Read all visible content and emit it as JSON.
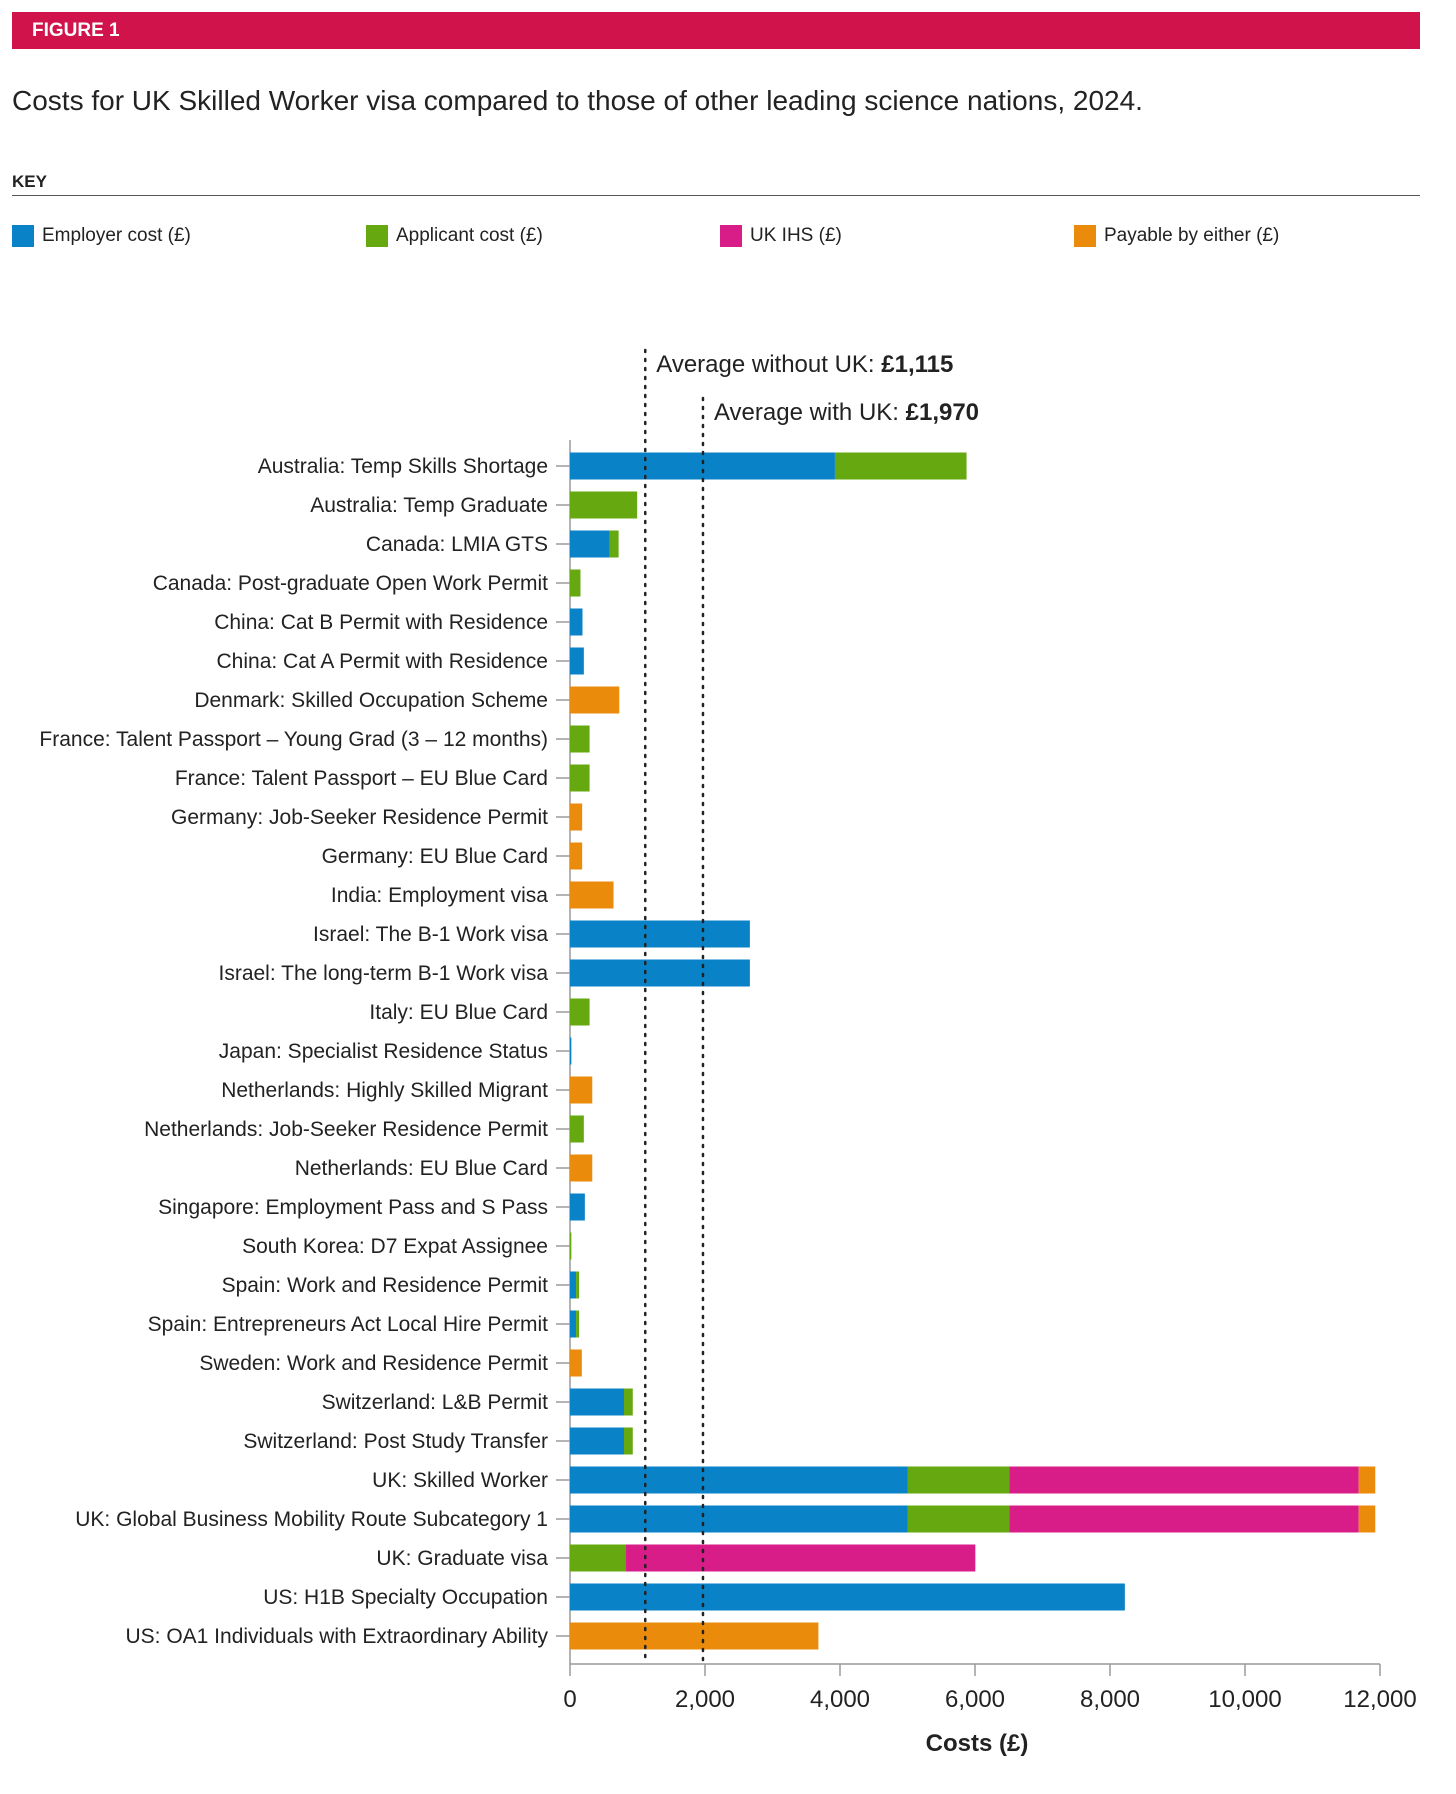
{
  "figure": {
    "label": "FIGURE 1",
    "title": "Costs for UK Skilled Worker visa compared to those of other leading science nations, 2024.",
    "key_heading": "KEY"
  },
  "legend": [
    {
      "name": "Employer cost (£)",
      "color": "#0a82c8"
    },
    {
      "name": "Applicant cost (£)",
      "color": "#65a80f"
    },
    {
      "name": "UK IHS (£)",
      "color": "#d81c88"
    },
    {
      "name": "Payable by either (£)",
      "color": "#ea8b0c"
    }
  ],
  "chart_data": {
    "type": "bar",
    "orientation": "horizontal",
    "stacked": true,
    "xlabel": "Costs (£)",
    "ylabel": "",
    "xlim": [
      0,
      12000
    ],
    "x_ticks": [
      0,
      2000,
      4000,
      6000,
      8000,
      10000,
      12000
    ],
    "x_tick_labels": [
      "0",
      "2,000",
      "4,000",
      "6,000",
      "8,000",
      "10,000",
      "12,000"
    ],
    "categories": [
      "Australia: Temp Skills Shortage",
      "Australia: Temp Graduate",
      "Canada: LMIA GTS",
      "Canada: Post-graduate Open Work Permit",
      "China: Cat B Permit with Residence",
      "China: Cat A Permit with Residence",
      "Denmark: Skilled Occupation Scheme",
      "France: Talent Passport – Young Grad (3 – 12 months)",
      "France: Talent Passport – EU Blue Card",
      "Germany: Job-Seeker Residence Permit",
      "Germany: EU Blue Card",
      "India: Employment visa",
      "Israel: The B-1 Work visa",
      "Israel: The long-term B-1 Work visa",
      "Italy: EU Blue Card",
      "Japan: Specialist Residence Status",
      "Netherlands: Highly Skilled Migrant",
      "Netherlands: Job-Seeker Residence Permit",
      "Netherlands: EU Blue Card",
      "Singapore: Employment Pass and S Pass",
      "South Korea: D7 Expat Assignee",
      "Spain: Work and Residence Permit",
      "Spain: Entrepreneurs Act Local Hire Permit",
      "Sweden: Work and Residence Permit",
      "Switzerland: L&B Permit",
      "Switzerland: Post Study Transfer",
      "UK: Skilled Worker",
      "UK: Global Business Mobility Route Subcategory 1",
      "UK: Graduate visa",
      "US: H1B Specialty Occupation",
      "US: OA1 Individuals with Extraordinary Ability"
    ],
    "series": [
      {
        "name": "Employer cost (£)",
        "color": "#0a82c8",
        "values": [
          3925,
          0,
          590,
          0,
          185,
          205,
          0,
          0,
          0,
          0,
          0,
          0,
          2665,
          2665,
          0,
          20,
          0,
          0,
          0,
          220,
          0,
          90,
          90,
          0,
          800,
          800,
          5000,
          5000,
          0,
          8220,
          0
        ]
      },
      {
        "name": "Applicant cost (£)",
        "color": "#65a80f",
        "values": [
          1950,
          995,
          130,
          155,
          0,
          0,
          0,
          290,
          290,
          0,
          0,
          0,
          0,
          0,
          290,
          0,
          0,
          205,
          0,
          0,
          20,
          45,
          45,
          0,
          130,
          130,
          1510,
          1510,
          830,
          0,
          0
        ]
      },
      {
        "name": "UK IHS (£)",
        "color": "#d81c88",
        "values": [
          0,
          0,
          0,
          0,
          0,
          0,
          0,
          0,
          0,
          0,
          0,
          0,
          0,
          0,
          0,
          0,
          0,
          0,
          0,
          0,
          0,
          0,
          0,
          0,
          0,
          0,
          5175,
          5175,
          5175,
          0,
          0
        ]
      },
      {
        "name": "Payable by either (£)",
        "color": "#ea8b0c",
        "values": [
          0,
          0,
          0,
          0,
          0,
          0,
          730,
          0,
          0,
          180,
          180,
          645,
          0,
          0,
          0,
          0,
          330,
          0,
          330,
          0,
          0,
          0,
          0,
          175,
          0,
          0,
          245,
          245,
          0,
          0,
          3680
        ]
      }
    ],
    "reference_lines": [
      {
        "label": "Average without UK: ",
        "value_label": "£1,115",
        "value": 1115
      },
      {
        "label": "Average with UK: ",
        "value_label": "£1,970",
        "value": 1970
      }
    ]
  }
}
